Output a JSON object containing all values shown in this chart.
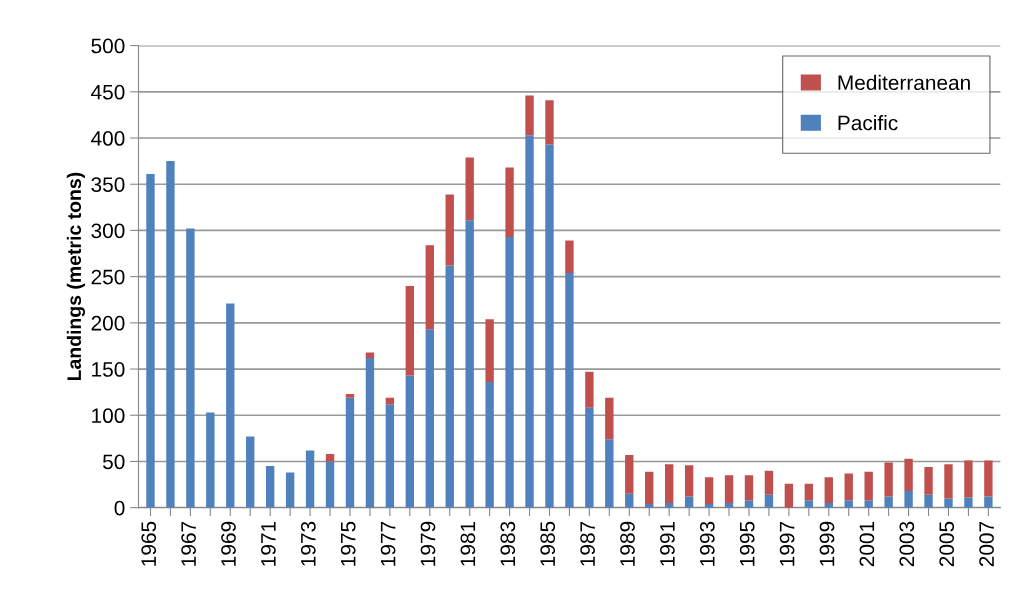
{
  "chart_data": {
    "type": "bar",
    "stacked": true,
    "ylabel": "Landings (metric tons)",
    "categories": [
      "1965",
      null,
      "1967",
      null,
      "1969",
      null,
      "1971",
      null,
      "1973",
      null,
      "1975",
      null,
      "1977",
      null,
      "1979",
      null,
      "1981",
      null,
      "1983",
      null,
      "1985",
      null,
      "1987",
      null,
      "1989",
      null,
      "1991",
      null,
      "1993",
      null,
      "1995",
      null,
      "1997",
      null,
      "1999",
      null,
      "2001",
      null,
      "2003",
      null,
      "2005",
      null,
      "2007"
    ],
    "series": [
      {
        "name": "Pacific",
        "color": "#4f81bd",
        "values": [
          361,
          375,
          302,
          103,
          221,
          77,
          45,
          38,
          62,
          50,
          119,
          162,
          112,
          143,
          193,
          262,
          311,
          136,
          293,
          403,
          393,
          254,
          108,
          74,
          15,
          4,
          5,
          12,
          4,
          5,
          8,
          14,
          0,
          8,
          5,
          8,
          8,
          12,
          18,
          14,
          10,
          11,
          12
        ]
      },
      {
        "name": "Mediterranean",
        "color": "#c0504d",
        "values": [
          0,
          0,
          0,
          0,
          0,
          0,
          0,
          0,
          0,
          8,
          4,
          6,
          7,
          97,
          91,
          77,
          68,
          68,
          75,
          43,
          48,
          35,
          39,
          45,
          42,
          35,
          42,
          34,
          29,
          30,
          27,
          26,
          26,
          18,
          28,
          29,
          31,
          37,
          35,
          30,
          37,
          40,
          39
        ]
      }
    ],
    "ylim": [
      0,
      500
    ],
    "yticks": [
      0,
      50,
      100,
      150,
      200,
      250,
      300,
      350,
      400,
      450,
      500
    ],
    "grid": "y",
    "legend": "top right"
  }
}
